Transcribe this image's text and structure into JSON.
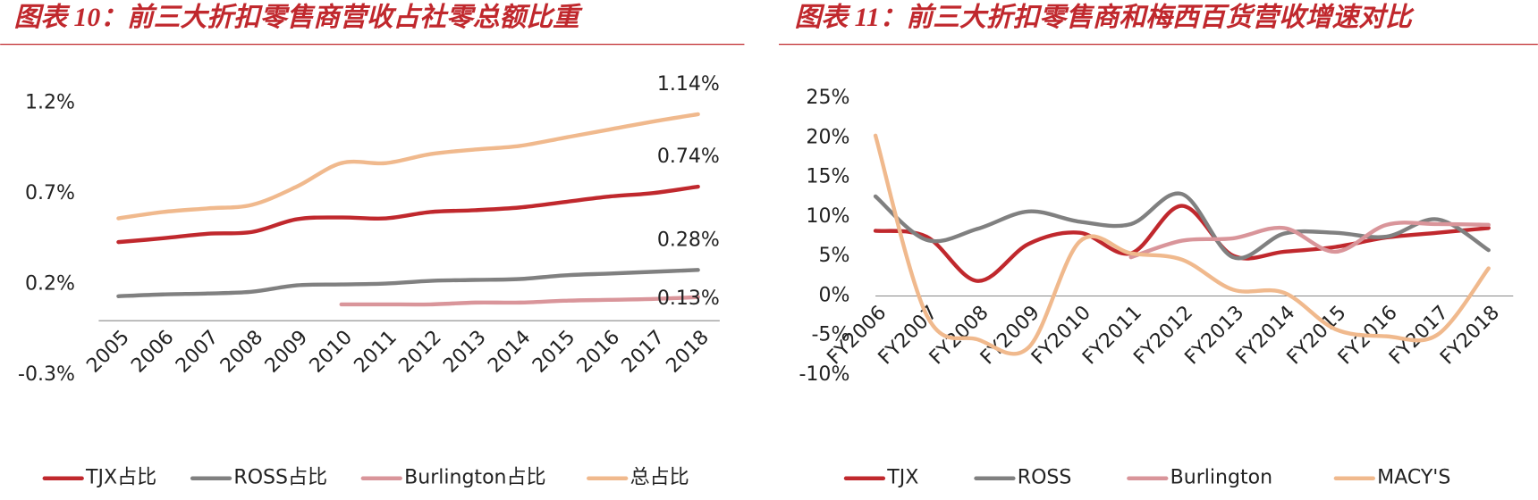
{
  "chart_data": [
    {
      "type": "line",
      "title": "图表 10：前三大折扣零售商营收占社零总额比重",
      "categories": [
        "2005",
        "2006",
        "2007",
        "2008",
        "2009",
        "2010",
        "2011",
        "2012",
        "2013",
        "2014",
        "2015",
        "2016",
        "2017",
        "2018"
      ],
      "series": [
        {
          "name": "TJX占比",
          "color": "#c0282d",
          "values": [
            0.434,
            0.455,
            0.48,
            0.49,
            0.56,
            0.57,
            0.565,
            0.6,
            0.61,
            0.625,
            0.655,
            0.685,
            0.705,
            0.74
          ],
          "value_labels": [
            null,
            null,
            null,
            null,
            null,
            null,
            null,
            null,
            null,
            null,
            null,
            null,
            null,
            "0.74%"
          ]
        },
        {
          "name": "ROSS占比",
          "color": "#808080",
          "values": [
            0.135,
            0.145,
            0.15,
            0.16,
            0.195,
            0.2,
            0.205,
            0.22,
            0.225,
            0.23,
            0.25,
            0.26,
            0.27,
            0.28
          ],
          "value_labels": [
            null,
            null,
            null,
            null,
            null,
            null,
            null,
            null,
            null,
            null,
            null,
            null,
            null,
            "0.28%"
          ]
        },
        {
          "name": "Burlington占比",
          "color": "#d9959a",
          "values": [
            null,
            null,
            null,
            null,
            null,
            0.09,
            0.09,
            0.09,
            0.1,
            0.1,
            0.11,
            0.115,
            0.12,
            0.13
          ],
          "value_labels": [
            null,
            null,
            null,
            null,
            null,
            null,
            null,
            null,
            null,
            null,
            null,
            null,
            null,
            "0.13%"
          ]
        },
        {
          "name": "总占比",
          "color": "#f0b98d",
          "values": [
            0.565,
            0.6,
            0.62,
            0.64,
            0.74,
            0.87,
            0.87,
            0.92,
            0.945,
            0.965,
            1.01,
            1.055,
            1.1,
            1.14
          ],
          "value_labels": [
            null,
            null,
            null,
            null,
            null,
            null,
            null,
            null,
            null,
            null,
            null,
            null,
            null,
            "1.14%"
          ]
        }
      ],
      "ylim": [
        -0.3,
        1.2
      ],
      "yticks": [
        {
          "value": -0.3,
          "label": "-0.3%"
        },
        {
          "value": 0.2,
          "label": "0.2%"
        },
        {
          "value": 0.7,
          "label": "0.7%"
        },
        {
          "value": 1.2,
          "label": "1.2%"
        }
      ],
      "grid": false,
      "legend": "bottom"
    },
    {
      "type": "line",
      "title": "图表 11：前三大折扣零售商和梅西百货营收增速对比",
      "categories": [
        "FY2006",
        "FY2007",
        "FY2008",
        "FY2009",
        "FY2010",
        "FY2011",
        "FY2012",
        "FY2013",
        "FY2014",
        "FY2015",
        "FY2016",
        "FY2017",
        "FY2018"
      ],
      "series": [
        {
          "name": "TJX",
          "color": "#c0282d",
          "values": [
            8.25,
            7.5,
            1.9,
            6.6,
            8,
            5.4,
            11.4,
            5.1,
            5.6,
            6.2,
            7.4,
            8,
            8.6
          ]
        },
        {
          "name": "ROSS",
          "color": "#808080",
          "values": [
            12.6,
            7.1,
            8.5,
            10.7,
            9.4,
            9.1,
            12.9,
            4.9,
            7.9,
            8,
            7.5,
            9.7,
            5.8
          ]
        },
        {
          "name": "Burlington",
          "color": "#d9959a",
          "values": [
            null,
            null,
            null,
            null,
            null,
            4.9,
            7,
            7.3,
            8.6,
            5.6,
            9,
            9.1,
            9
          ]
        },
        {
          "name": "MACY'S",
          "color": "#f0b98d",
          "values": [
            20.3,
            -2.4,
            -5.5,
            -6.5,
            6.9,
            5.4,
            4.6,
            0.8,
            0.4,
            -4.2,
            -5.1,
            -4.9,
            3.5
          ]
        }
      ],
      "ylim": [
        -10,
        25
      ],
      "yticks": [
        {
          "value": -10,
          "label": "-10%"
        },
        {
          "value": -5,
          "label": "-5%"
        },
        {
          "value": 0,
          "label": "0%"
        },
        {
          "value": 5,
          "label": "5%"
        },
        {
          "value": 10,
          "label": "10%"
        },
        {
          "value": 15,
          "label": "15%"
        },
        {
          "value": 20,
          "label": "20%"
        },
        {
          "value": 25,
          "label": "25%"
        }
      ],
      "grid": false,
      "legend": "bottom"
    }
  ]
}
